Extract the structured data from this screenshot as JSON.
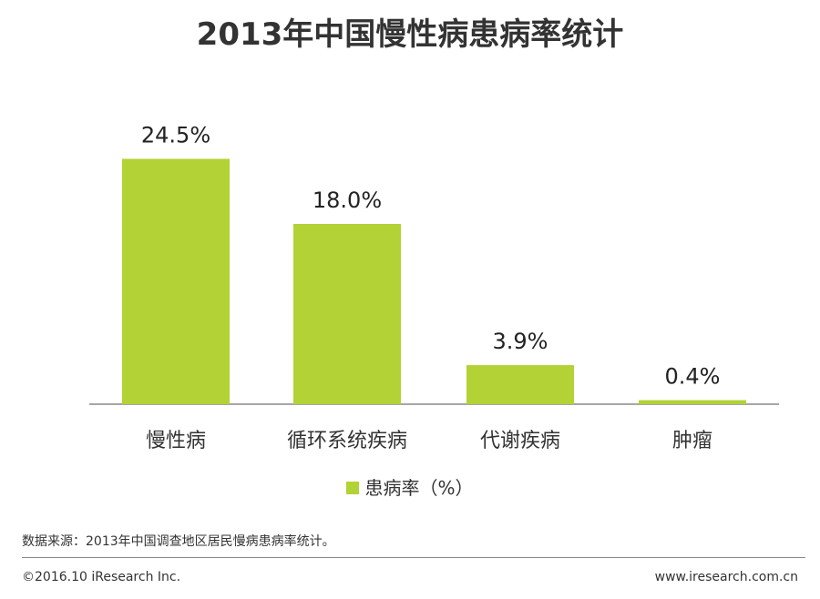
{
  "title": "2013年中国慢性病患病率统计",
  "legend": {
    "label": "患病率（%）"
  },
  "source": "数据来源：2013年中国调查地区居民慢病患病率统计。",
  "copyright": "©2016.10 iResearch Inc.",
  "website": "www.iresearch.com.cn",
  "colors": {
    "bar": "#b2d235",
    "axis": "#888888"
  },
  "chart_data": {
    "type": "bar",
    "categories": [
      "慢性病",
      "循环系统疾病",
      "代谢疾病",
      "肿瘤"
    ],
    "values": [
      24.5,
      18.0,
      3.9,
      0.4
    ],
    "data_labels": [
      "24.5%",
      "18.0%",
      "3.9%",
      "0.4%"
    ],
    "series": [
      {
        "name": "患病率（%）",
        "values": [
          24.5,
          18.0,
          3.9,
          0.4
        ]
      }
    ],
    "ylim": [
      0,
      30
    ],
    "grid": false,
    "legend_position": "bottom"
  }
}
